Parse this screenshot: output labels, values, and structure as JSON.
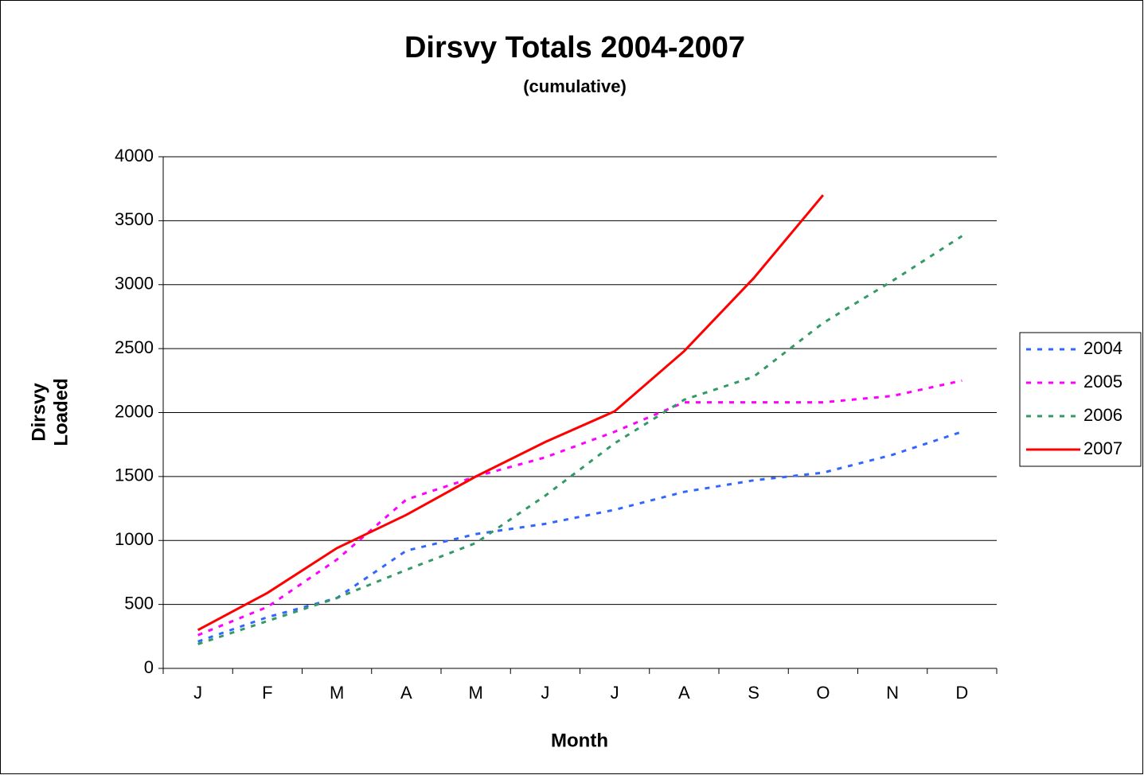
{
  "chart_data": {
    "type": "line",
    "title": "Dirsvy Totals 2004-2007",
    "subtitle": "(cumulative)",
    "xlabel": "Month",
    "ylabel_lines": [
      "Dirsvy",
      "Loaded"
    ],
    "categories": [
      "J",
      "F",
      "M",
      "A",
      "M",
      "J",
      "J",
      "A",
      "S",
      "O",
      "N",
      "D"
    ],
    "series": [
      {
        "name": "2004",
        "color": "#3366ff",
        "style": "dashed",
        "values": [
          210,
          400,
          550,
          920,
          1050,
          1130,
          1240,
          1380,
          1470,
          1530,
          1670,
          1850
        ]
      },
      {
        "name": "2005",
        "color": "#ff00ff",
        "style": "dashed",
        "values": [
          260,
          480,
          850,
          1320,
          1500,
          1650,
          1850,
          2080,
          2080,
          2080,
          2130,
          2250
        ]
      },
      {
        "name": "2006",
        "color": "#339966",
        "style": "dashed",
        "values": [
          190,
          370,
          550,
          770,
          980,
          1350,
          1760,
          2100,
          2280,
          2700,
          3030,
          3380
        ]
      },
      {
        "name": "2007",
        "color": "#ff0000",
        "style": "solid",
        "values": [
          300,
          590,
          940,
          1200,
          1500,
          1770,
          2010,
          2480,
          3050,
          3700,
          null,
          null
        ]
      }
    ],
    "ylim": [
      0,
      4000
    ],
    "yticks": [
      0,
      500,
      1000,
      1500,
      2000,
      2500,
      3000,
      3500,
      4000
    ],
    "grid": true,
    "legend": "right"
  }
}
